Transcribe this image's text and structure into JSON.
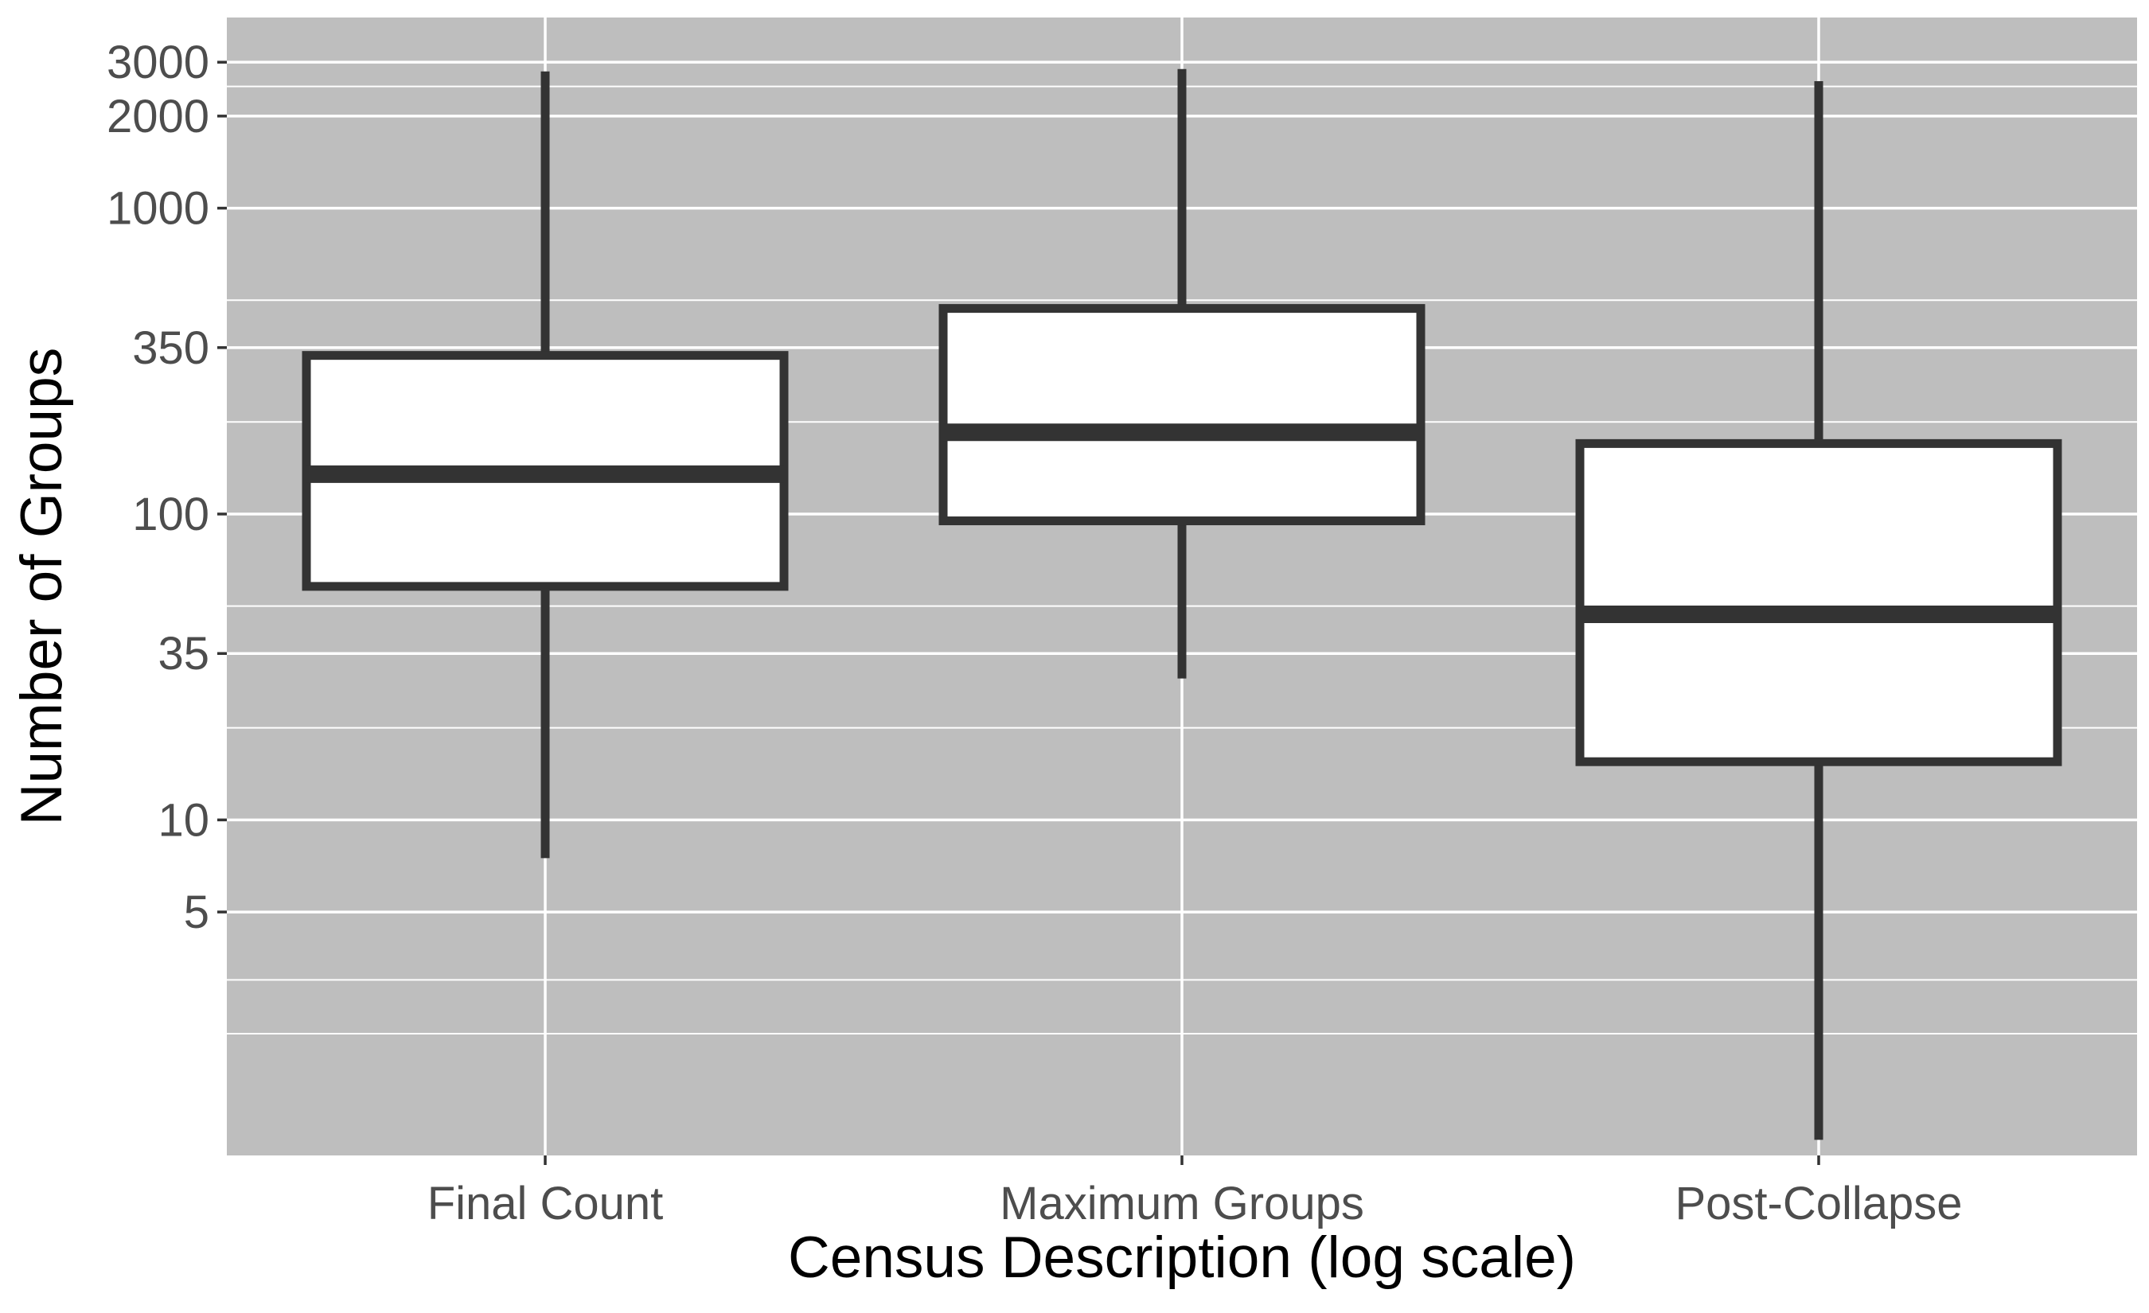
{
  "chart_data": {
    "type": "boxplot",
    "xlabel": "Census Description (log scale)",
    "ylabel": "Number of Groups",
    "y_scale": "log10",
    "ylim": [
      0.8,
      4200
    ],
    "y_ticks": [
      5,
      10,
      35,
      100,
      350,
      1000,
      2000,
      3000
    ],
    "y_tick_labels": [
      "5",
      "10",
      "35",
      "100",
      "350",
      "1000",
      "2000",
      "3000"
    ],
    "y_minor_gridlines": [
      2,
      3,
      20,
      50,
      200,
      500,
      2500
    ],
    "categories": [
      "Final Count",
      "Maximum Groups",
      "Post-Collapse"
    ],
    "boxes": [
      {
        "category": "Final Count",
        "whisker_low": 7.5,
        "q1": 58,
        "median": 135,
        "q3": 330,
        "whisker_high": 2800
      },
      {
        "category": "Maximum Groups",
        "whisker_low": 29,
        "q1": 95,
        "median": 185,
        "q3": 470,
        "whisker_high": 2850
      },
      {
        "category": "Post-Collapse",
        "whisker_low": 0.9,
        "q1": 15.5,
        "median": 47,
        "q3": 170,
        "whisker_high": 2600
      }
    ],
    "panel_background": "#bebebe",
    "grid_color": "#ffffff",
    "box_fill": "#ffffff",
    "box_stroke": "#333333",
    "grid": true,
    "legend": "none"
  }
}
